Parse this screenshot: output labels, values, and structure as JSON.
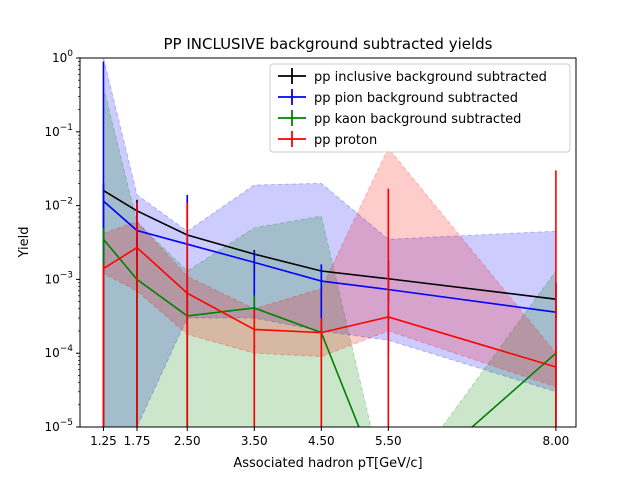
{
  "chart_data": {
    "type": "line",
    "title": "PP INCLUSIVE background subtracted yields",
    "xlabel": "Associated hadron pT[GeV/c]",
    "ylabel": "Yield",
    "y_scale": "log",
    "ylim": [
      1e-05,
      1
    ],
    "xlim": [
      0.9,
      8.3
    ],
    "x_ticks": [
      1.25,
      1.75,
      2.5,
      3.5,
      4.5,
      5.5,
      8.0
    ],
    "x_tick_labels": [
      "1.25",
      "1.75",
      "2.50",
      "3.50",
      "4.50",
      "5.50",
      "8.00"
    ],
    "y_ticks": [
      1e-05,
      0.0001,
      0.001,
      0.01,
      0.1,
      1
    ],
    "y_tick_labels": [
      {
        "base": "10",
        "exp": "−5"
      },
      {
        "base": "10",
        "exp": "−4"
      },
      {
        "base": "10",
        "exp": "−3"
      },
      {
        "base": "10",
        "exp": "−2"
      },
      {
        "base": "10",
        "exp": "−1"
      },
      {
        "base": "10",
        "exp": "0"
      }
    ],
    "grid": false,
    "legend_position": "top-right",
    "x": [
      1.25,
      1.75,
      2.5,
      3.5,
      4.5,
      5.5,
      8.0
    ],
    "series": [
      {
        "name": "pp inclusive background subtracted",
        "color": "#000000",
        "values": [
          0.016,
          0.0085,
          0.004,
          0.0022,
          0.0013,
          0.00102,
          0.00054
        ],
        "err_low": [
          1e-05,
          1e-05,
          1e-05,
          0.001,
          0.0007,
          0.0005,
          0.0003
        ],
        "err_high": [
          0.02,
          0.012,
          0.012,
          0.0025,
          0.0015,
          0.0018,
          0.0009
        ],
        "band": null
      },
      {
        "name": "pp pion background subtracted",
        "color": "#0000ff",
        "values": [
          0.0115,
          0.0046,
          0.003,
          0.0017,
          0.00095,
          0.00073,
          0.00036
        ],
        "err_low": [
          1e-05,
          1e-05,
          1e-05,
          0.0003,
          0.0002,
          0.0001,
          1e-05
        ],
        "err_high": [
          0.9,
          0.011,
          0.014,
          0.0024,
          0.0016,
          0.0018,
          0.0009
        ],
        "band": {
          "color": "#0000ff",
          "upper": [
            1.0,
            0.014,
            0.0045,
            0.019,
            0.02,
            0.0035,
            0.0045
          ],
          "lower": [
            1e-05,
            1e-05,
            0.0003,
            0.0003,
            0.0002,
            0.00015,
            3e-05
          ]
        }
      },
      {
        "name": "pp kaon background subtracted",
        "color": "#008000",
        "values": [
          0.0035,
          0.001,
          0.00032,
          0.00041,
          0.00019,
          1e-06,
          0.0001
        ],
        "err_low": [
          1e-05,
          1e-05,
          1e-05,
          1e-05,
          1e-05,
          1e-05,
          1e-05
        ],
        "err_high": [
          0.005,
          0.002,
          0.0005,
          0.0006,
          0.0003,
          1e-05,
          0.00012
        ],
        "band": {
          "color": "#008000",
          "upper": [
            0.4,
            0.006,
            0.0013,
            0.005,
            0.0072,
            1e-06,
            0.0013
          ],
          "lower": [
            1e-05,
            1e-05,
            1e-05,
            1e-05,
            1e-05,
            1e-06,
            1e-06
          ]
        }
      },
      {
        "name": "pp proton",
        "color": "#ff0000",
        "values": [
          0.0014,
          0.0027,
          0.00065,
          0.00021,
          0.00019,
          0.00031,
          6.5e-05
        ],
        "err_low": [
          1e-05,
          1e-05,
          1e-05,
          1e-05,
          1e-05,
          1e-05,
          1e-05
        ],
        "err_high": [
          0.0016,
          0.011,
          0.011,
          0.0004,
          0.0003,
          0.017,
          0.03
        ],
        "band": {
          "color": "#ff0000",
          "upper": [
            0.0042,
            0.0061,
            0.0011,
            0.0004,
            0.00075,
            0.06,
            0.0001
          ],
          "lower": [
            0.0012,
            0.0007,
            0.00018,
            0.0001,
            9e-05,
            0.0002,
            3.5e-05
          ]
        }
      }
    ]
  }
}
